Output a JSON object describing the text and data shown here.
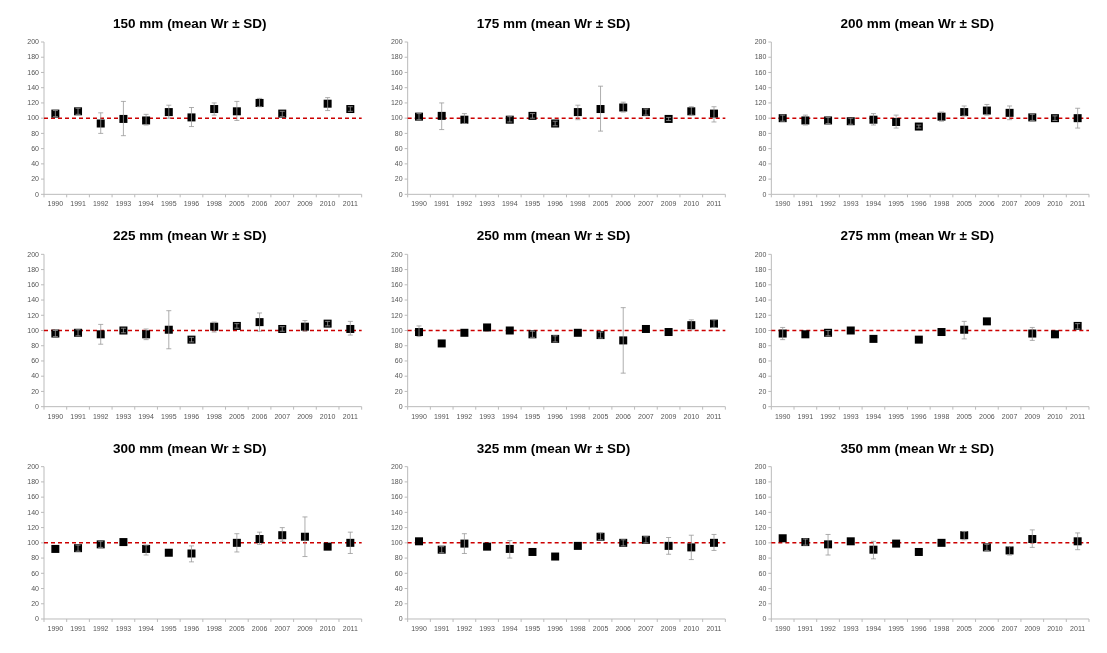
{
  "chart_data": [
    {
      "type": "scatter",
      "title": "150 mm (mean Wr ± SD)",
      "categories": [
        "1990",
        "1991",
        "1992",
        "1993",
        "1994",
        "1995",
        "1996",
        "1998",
        "2005",
        "2006",
        "2007",
        "2009",
        "2010",
        "2011"
      ],
      "series": [
        {
          "color": "#000000",
          "values": [
            106,
            109,
            93,
            99,
            97,
            108,
            101,
            112,
            109,
            120,
            106,
            null,
            119,
            112
          ],
          "errors": [
            4,
            4,
            [
              80,
              107
            ],
            [
              77,
              122
            ],
            [
              91,
              105
            ],
            [
              100,
              117
            ],
            [
              89,
              114
            ],
            [
              104,
              120
            ],
            [
              97,
              122
            ],
            [
              115,
              126
            ],
            [
              102,
              109
            ],
            null,
            [
              110,
              127
            ],
            3
          ]
        }
      ],
      "marker": "square",
      "ylim": [
        0,
        200
      ],
      "yticks": [
        0,
        20,
        40,
        60,
        80,
        100,
        120,
        140,
        160,
        180,
        200
      ],
      "grid": false,
      "ref_lines": [
        {
          "axis": "y",
          "value": 100,
          "color": "#cc0000",
          "line_style": "dashed"
        }
      ]
    },
    {
      "type": "scatter",
      "title": "175 mm (mean Wr ± SD)",
      "categories": [
        "1990",
        "1991",
        "1992",
        "1993",
        "1994",
        "1995",
        "1996",
        "1998",
        "2005",
        "2006",
        "2007",
        "2009",
        "2010",
        "2011"
      ],
      "series": [
        {
          "color": "#000000",
          "values": [
            102,
            103,
            98,
            null,
            98,
            103,
            93,
            108,
            112,
            114,
            108,
            99,
            109,
            106
          ],
          "errors": [
            [
              98,
              106
            ],
            [
              85,
              120
            ],
            [
              93,
              106
            ],
            null,
            [
              95,
              102
            ],
            3,
            3,
            [
              98,
              117
            ],
            [
              83,
              142
            ],
            [
              108,
              121
            ],
            4,
            2,
            [
              104,
              115
            ],
            [
              95,
              115
            ]
          ]
        }
      ],
      "marker": "square",
      "ylim": [
        0,
        200
      ],
      "yticks": [
        0,
        20,
        40,
        60,
        80,
        100,
        120,
        140,
        160,
        180,
        200
      ],
      "grid": false,
      "ref_lines": [
        {
          "axis": "y",
          "value": 100,
          "color": "#cc0000",
          "line_style": "dashed"
        }
      ]
    },
    {
      "type": "scatter",
      "title": "200 mm (mean Wr ± SD)",
      "categories": [
        "1990",
        "1991",
        "1992",
        "1993",
        "1994",
        "1995",
        "1996",
        "1998",
        "2005",
        "2006",
        "2007",
        "2009",
        "2010",
        "2011"
      ],
      "series": [
        {
          "color": "#000000",
          "values": [
            100,
            97,
            97,
            96,
            98,
            95,
            89,
            102,
            108,
            110,
            107,
            101,
            100,
            100
          ],
          "errors": [
            4,
            [
              91,
              104
            ],
            4,
            4,
            [
              91,
              106
            ],
            [
              87,
              104
            ],
            2,
            [
              96,
              108
            ],
            [
              103,
              116
            ],
            [
              104,
              118
            ],
            [
              98,
              116
            ],
            4,
            3,
            [
              87,
              113
            ]
          ]
        }
      ],
      "marker": "square",
      "ylim": [
        0,
        200
      ],
      "yticks": [
        0,
        20,
        40,
        60,
        80,
        100,
        120,
        140,
        160,
        180,
        200
      ],
      "grid": false,
      "ref_lines": [
        {
          "axis": "y",
          "value": 100,
          "color": "#cc0000",
          "line_style": "dashed"
        }
      ]
    },
    {
      "type": "scatter",
      "title": "225 mm (mean Wr ± SD)",
      "categories": [
        "1990",
        "1991",
        "1992",
        "1993",
        "1994",
        "1995",
        "1996",
        "1998",
        "2005",
        "2006",
        "2007",
        "2009",
        "2010",
        "2011"
      ],
      "series": [
        {
          "color": "#000000",
          "values": [
            96,
            97,
            95,
            100,
            95,
            101,
            88,
            105,
            106,
            111,
            102,
            105,
            109,
            102
          ],
          "errors": [
            4,
            4,
            [
              82,
              108
            ],
            3,
            [
              88,
              102
            ],
            [
              76,
              126
            ],
            3,
            [
              98,
              111
            ],
            3,
            [
              99,
              123
            ],
            3,
            [
              99,
              113
            ],
            3,
            [
              94,
              112
            ]
          ]
        }
      ],
      "marker": "square",
      "ylim": [
        0,
        200
      ],
      "yticks": [
        0,
        20,
        40,
        60,
        80,
        100,
        120,
        140,
        160,
        180,
        200
      ],
      "grid": false,
      "ref_lines": [
        {
          "axis": "y",
          "value": 100,
          "color": "#cc0000",
          "line_style": "dashed"
        }
      ]
    },
    {
      "type": "scatter",
      "title": "250 mm (mean Wr ± SD)",
      "categories": [
        "1990",
        "1991",
        "1992",
        "1993",
        "1994",
        "1995",
        "1996",
        "1998",
        "2005",
        "2006",
        "2007",
        "2009",
        "2010",
        "2011"
      ],
      "series": [
        {
          "color": "#000000",
          "values": [
            98,
            83,
            97,
            104,
            100,
            95,
            89,
            97,
            94,
            87,
            102,
            98,
            107,
            109
          ],
          "errors": [
            [
              92,
              106
            ],
            null,
            null,
            null,
            null,
            [
              91,
              99
            ],
            [
              85,
              93
            ],
            null,
            [
              90,
              98
            ],
            [
              44,
              130
            ],
            null,
            null,
            [
              101,
              114
            ],
            [
              104,
              114
            ]
          ]
        }
      ],
      "marker": "square",
      "ylim": [
        0,
        200
      ],
      "yticks": [
        0,
        20,
        40,
        60,
        80,
        100,
        120,
        140,
        160,
        180,
        200
      ],
      "grid": false,
      "ref_lines": [
        {
          "axis": "y",
          "value": 100,
          "color": "#cc0000",
          "line_style": "dashed"
        }
      ]
    },
    {
      "type": "scatter",
      "title": "275 mm (mean Wr ± SD)",
      "categories": [
        "1990",
        "1991",
        "1992",
        "1993",
        "1994",
        "1995",
        "1996",
        "1998",
        "2005",
        "2006",
        "2007",
        "2009",
        "2010",
        "2011"
      ],
      "series": [
        {
          "color": "#000000",
          "values": [
            96,
            95,
            97,
            100,
            89,
            null,
            88,
            98,
            101,
            112,
            null,
            96,
            95,
            106
          ],
          "errors": [
            [
              88,
              104
            ],
            null,
            [
              93,
              100
            ],
            null,
            null,
            null,
            null,
            null,
            [
              89,
              112
            ],
            null,
            null,
            [
              87,
              104
            ],
            null,
            [
              102,
              109
            ]
          ]
        }
      ],
      "marker": "square",
      "ylim": [
        0,
        200
      ],
      "yticks": [
        0,
        20,
        40,
        60,
        80,
        100,
        120,
        140,
        160,
        180,
        200
      ],
      "grid": false,
      "ref_lines": [
        {
          "axis": "y",
          "value": 100,
          "color": "#cc0000",
          "line_style": "dashed"
        }
      ]
    },
    {
      "type": "scatter",
      "title": "300 mm (mean Wr ± SD)",
      "categories": [
        "1990",
        "1991",
        "1992",
        "1993",
        "1994",
        "1995",
        "1996",
        "1998",
        "2005",
        "2006",
        "2007",
        "2009",
        "2010",
        "2011"
      ],
      "series": [
        {
          "color": "#000000",
          "values": [
            92,
            93,
            98,
            101,
            92,
            87,
            86,
            null,
            100,
            105,
            110,
            108,
            95,
            100
          ],
          "errors": [
            null,
            [
              89,
              97
            ],
            [
              94,
              102
            ],
            null,
            [
              84,
              97
            ],
            null,
            [
              75,
              96
            ],
            null,
            [
              88,
              112
            ],
            [
              98,
              114
            ],
            [
              102,
              120
            ],
            [
              82,
              134
            ],
            null,
            [
              86,
              114
            ]
          ]
        }
      ],
      "marker": "square",
      "ylim": [
        0,
        200
      ],
      "yticks": [
        0,
        20,
        40,
        60,
        80,
        100,
        120,
        140,
        160,
        180,
        200
      ],
      "grid": false,
      "ref_lines": [
        {
          "axis": "y",
          "value": 100,
          "color": "#cc0000",
          "line_style": "dashed"
        }
      ]
    },
    {
      "type": "scatter",
      "title": "325 mm (mean Wr ± SD)",
      "categories": [
        "1990",
        "1991",
        "1992",
        "1993",
        "1994",
        "1995",
        "1996",
        "1998",
        "2005",
        "2006",
        "2007",
        "2009",
        "2010",
        "2011"
      ],
      "series": [
        {
          "color": "#000000",
          "values": [
            102,
            91,
            99,
            95,
            92,
            88,
            82,
            96,
            108,
            100,
            104,
            96,
            94,
            100
          ],
          "errors": [
            null,
            [
              87,
              95
            ],
            [
              86,
              112
            ],
            null,
            [
              80,
              103
            ],
            null,
            null,
            null,
            [
              104,
              113
            ],
            [
              96,
              104
            ],
            [
              100,
              108
            ],
            [
              85,
              107
            ],
            [
              78,
              110
            ],
            [
              90,
              111
            ]
          ]
        }
      ],
      "marker": "square",
      "ylim": [
        0,
        200
      ],
      "yticks": [
        0,
        20,
        40,
        60,
        80,
        100,
        120,
        140,
        160,
        180,
        200
      ],
      "grid": false,
      "ref_lines": [
        {
          "axis": "y",
          "value": 100,
          "color": "#cc0000",
          "line_style": "dashed"
        }
      ]
    },
    {
      "type": "scatter",
      "title": "350 mm (mean Wr ± SD)",
      "categories": [
        "1990",
        "1991",
        "1992",
        "1993",
        "1994",
        "1995",
        "1996",
        "1998",
        "2005",
        "2006",
        "2007",
        "2009",
        "2010",
        "2011"
      ],
      "series": [
        {
          "color": "#000000",
          "values": [
            106,
            101,
            98,
            102,
            91,
            99,
            88,
            100,
            110,
            94,
            90,
            105,
            null,
            102
          ],
          "errors": [
            null,
            [
              97,
              105
            ],
            [
              84,
              111
            ],
            null,
            [
              79,
              102
            ],
            null,
            null,
            null,
            [
              104,
              115
            ],
            [
              90,
              98
            ],
            [
              84,
              95
            ],
            [
              94,
              117
            ],
            null,
            [
              91,
              113
            ]
          ]
        }
      ],
      "marker": "square",
      "ylim": [
        0,
        200
      ],
      "yticks": [
        0,
        20,
        40,
        60,
        80,
        100,
        120,
        140,
        160,
        180,
        200
      ],
      "grid": false,
      "ref_lines": [
        {
          "axis": "y",
          "value": 100,
          "color": "#cc0000",
          "line_style": "dashed"
        }
      ]
    }
  ]
}
